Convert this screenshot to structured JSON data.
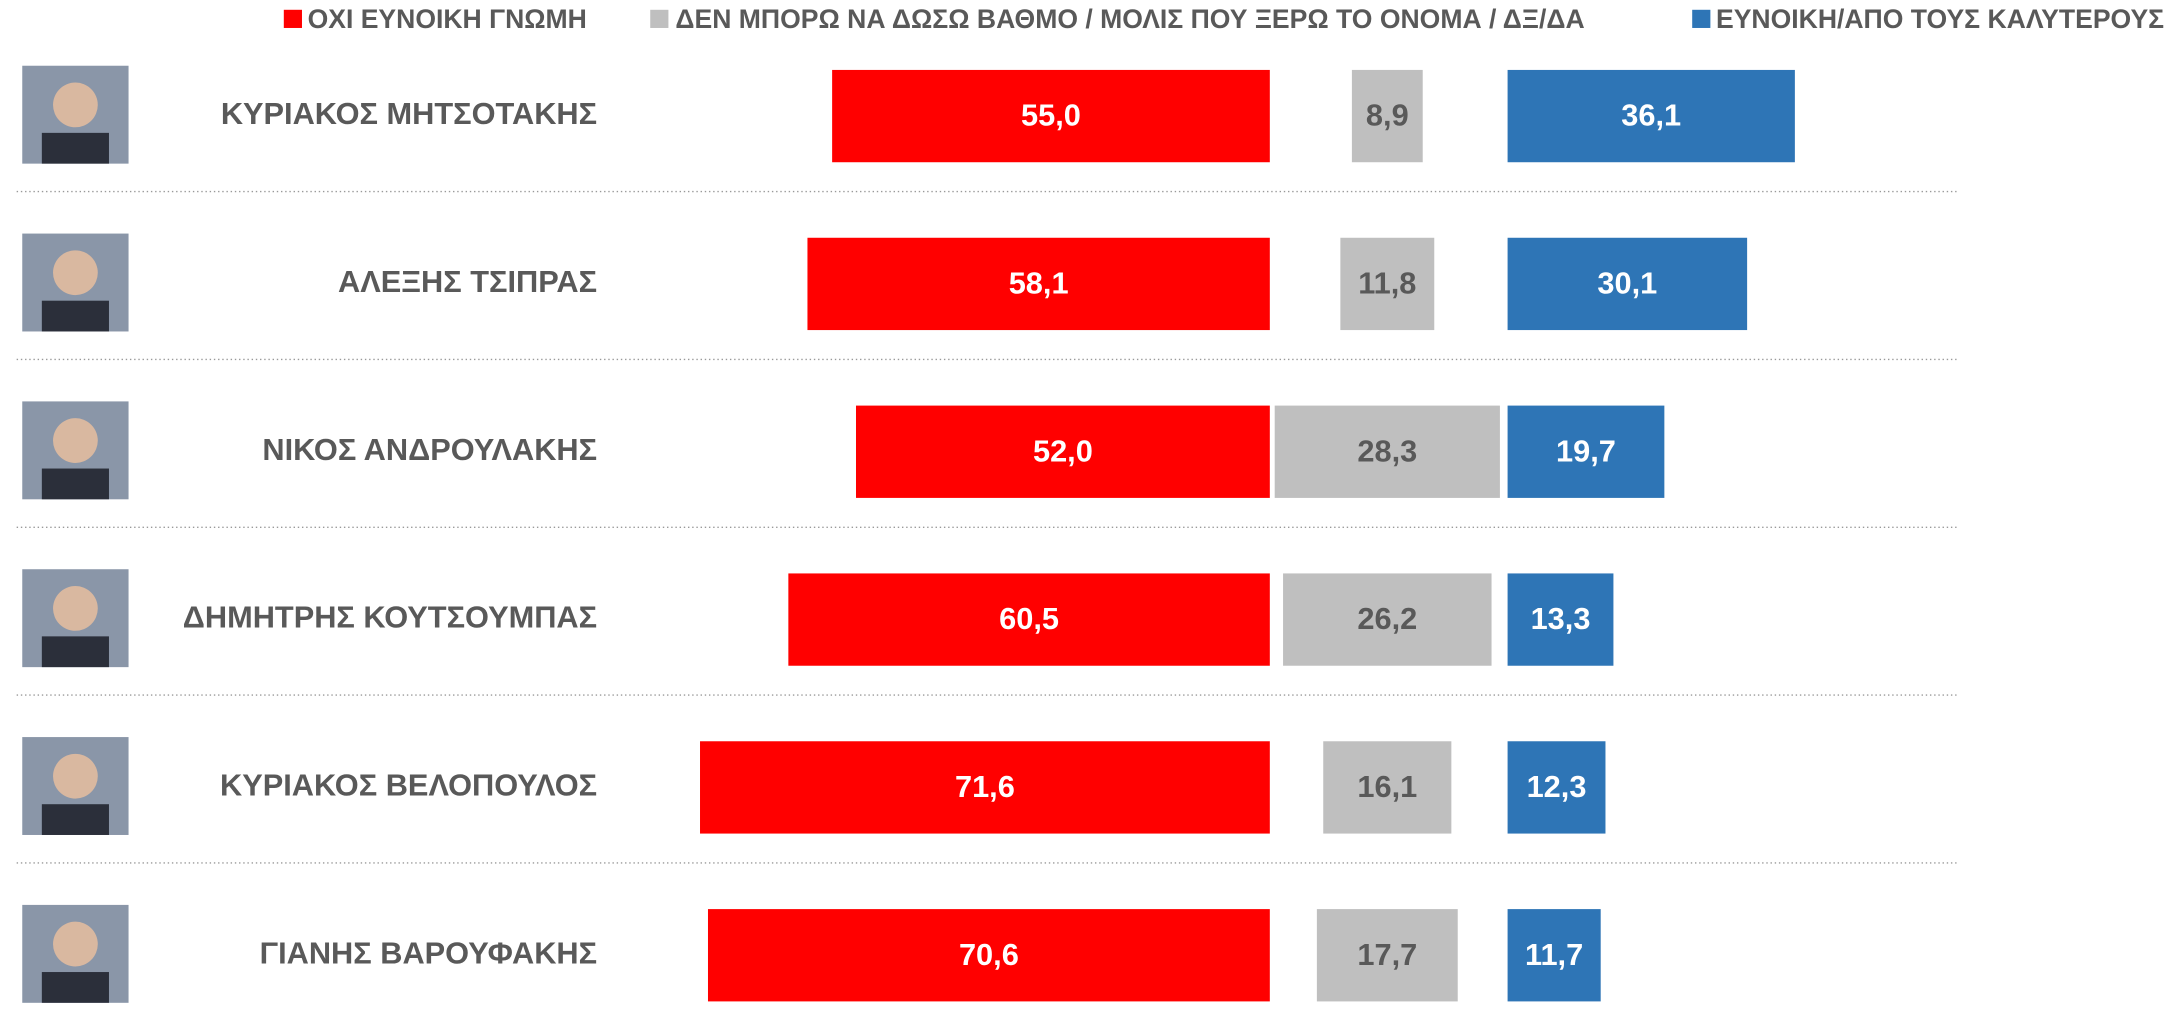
{
  "chart_data": {
    "type": "diverging-bar",
    "categories": [
      "ΚΥΡΙΑΚΟΣ ΜΗΤΣΟΤΑΚΗΣ",
      "ΑΛΕΞΗΣ ΤΣΙΠΡΑΣ",
      "ΝΙΚΟΣ ΑΝΔΡΟΥΛΑΚΗΣ",
      "ΔΗΜΗΤΡΗΣ ΚΟΥΤΣΟΥΜΠΑΣ",
      "ΚΥΡΙΑΚΟΣ ΒΕΛΟΠΟΥΛΟΣ",
      "ΓΙΑΝΗΣ ΒΑΡΟΥΦΑΚΗΣ"
    ],
    "series": [
      {
        "name": "ΟΧΙ ΕΥΝΟΙΚΗ ΓΝΩΜΗ",
        "color": "#ff0000",
        "values": [
          55.0,
          58.1,
          52.0,
          60.5,
          71.6,
          70.6
        ],
        "value_labels": [
          "55,0",
          "58,1",
          "52,0",
          "60,5",
          "71,6",
          "70,6"
        ]
      },
      {
        "name": "ΔΕΝ ΜΠΟΡΩ ΝΑ ΔΩΣΩ ΒΑΘΜΟ / ΜΟΛΙΣ ΠΟΥ ΞΕΡΩ ΤΟ ΟΝΟΜΑ / ΔΞ/ΔΑ",
        "color": "#bfbfbf",
        "values": [
          8.9,
          11.8,
          28.3,
          26.2,
          16.1,
          17.7
        ],
        "value_labels": [
          "8,9",
          "11,8",
          "28,3",
          "26,2",
          "16,1",
          "17,7"
        ]
      },
      {
        "name": "ΕΥΝΟΙΚΗ/ΑΠΟ ΤΟΥΣ ΚΑΛΥΤΕΡΟΥΣ",
        "color": "#2e75b6",
        "values": [
          36.1,
          30.1,
          19.7,
          13.3,
          12.3,
          11.7
        ],
        "value_labels": [
          "36,1",
          "30,1",
          "19,7",
          "13,3",
          "12,3",
          "11,7"
        ]
      }
    ],
    "legend": "top"
  }
}
